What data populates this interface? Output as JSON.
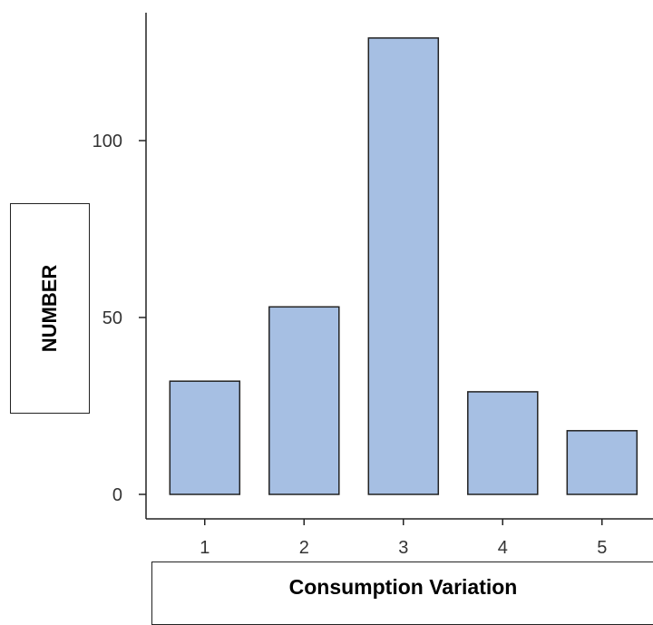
{
  "chart_data": {
    "type": "bar",
    "categories": [
      "1",
      "2",
      "3",
      "4",
      "5"
    ],
    "values": [
      32,
      53,
      129,
      29,
      18
    ],
    "xlabel": "Consumption Variation",
    "ylabel": "NUMBER",
    "ylim": [
      0,
      135
    ],
    "yticks": [
      "0",
      "50",
      "100"
    ],
    "grid": false,
    "bar_color": "#a6bfe3",
    "bar_edge_color": "#222222"
  }
}
